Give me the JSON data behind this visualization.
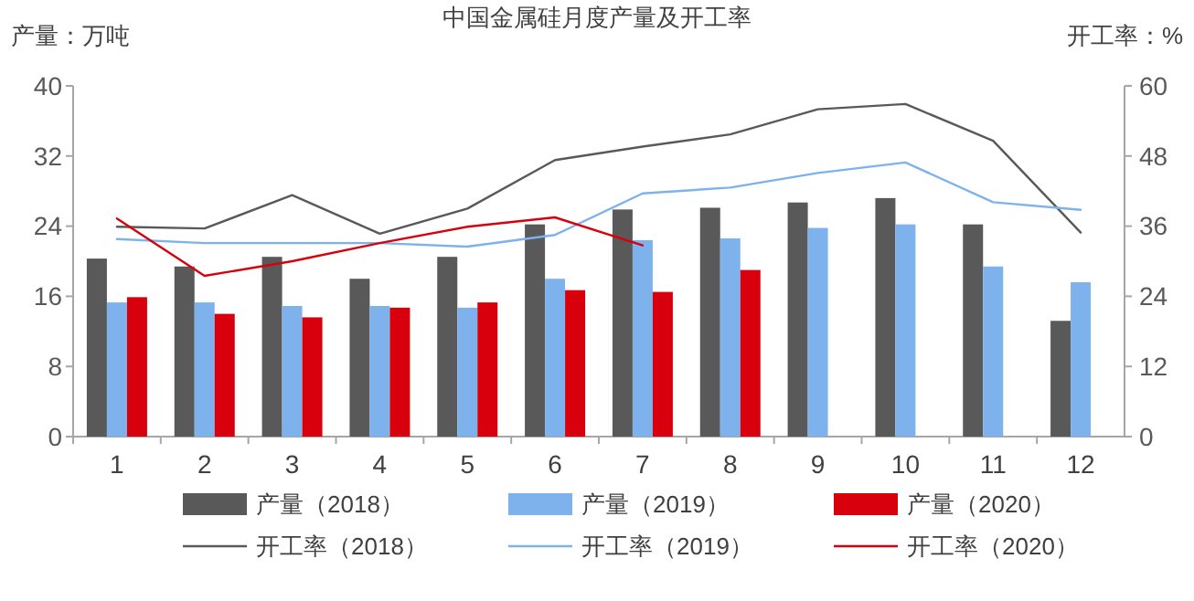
{
  "chart_data": {
    "type": "bar",
    "title": "中国金属硅月度产量及开工率",
    "ylabel": "产量：万吨",
    "y2label": "开工率：%",
    "categories": [
      "1",
      "2",
      "3",
      "4",
      "5",
      "6",
      "7",
      "8",
      "9",
      "10",
      "11",
      "12"
    ],
    "ylim": [
      0,
      40
    ],
    "yticks": [
      0,
      8,
      16,
      24,
      32,
      40
    ],
    "y2lim": [
      0,
      60
    ],
    "y2ticks": [
      0,
      12,
      24,
      36,
      48,
      60
    ],
    "legend": "bottom",
    "grid": false,
    "series": [
      {
        "name": "产量（2018）",
        "color": "#595959",
        "values": [
          20.3,
          19.4,
          20.5,
          18.0,
          20.5,
          24.2,
          25.9,
          26.1,
          26.7,
          27.2,
          24.2,
          13.2
        ]
      },
      {
        "name": "产量（2019）",
        "color": "#7eb2ec",
        "values": [
          15.3,
          15.3,
          14.9,
          14.9,
          14.7,
          18.0,
          22.4,
          22.6,
          23.8,
          24.2,
          19.4,
          17.6
        ]
      },
      {
        "name": "产量（2020）",
        "color": "#d9000d",
        "values": [
          15.9,
          14.0,
          13.6,
          14.7,
          15.3,
          16.7,
          16.5,
          19.0,
          null,
          null,
          null,
          null
        ]
      },
      {
        "name": "开工率（2018）",
        "type": "line",
        "axis": "y2",
        "color": "#595959",
        "values": [
          35.9,
          35.6,
          41.3,
          34.7,
          39.0,
          47.3,
          49.6,
          51.7,
          56.0,
          56.9,
          50.6,
          34.9
        ]
      },
      {
        "name": "开工率（2019）",
        "type": "line",
        "axis": "y2",
        "color": "#7eb2ec",
        "values": [
          33.8,
          33.1,
          33.1,
          33.1,
          32.5,
          34.5,
          41.6,
          42.6,
          45.1,
          46.9,
          40.1,
          38.8
        ]
      },
      {
        "name": "开工率（2020）",
        "type": "line",
        "axis": "y2",
        "color": "#d9000d",
        "values": [
          37.3,
          27.5,
          30.0,
          33.1,
          35.9,
          37.5,
          32.7,
          null,
          null,
          null,
          null,
          null
        ]
      }
    ]
  }
}
